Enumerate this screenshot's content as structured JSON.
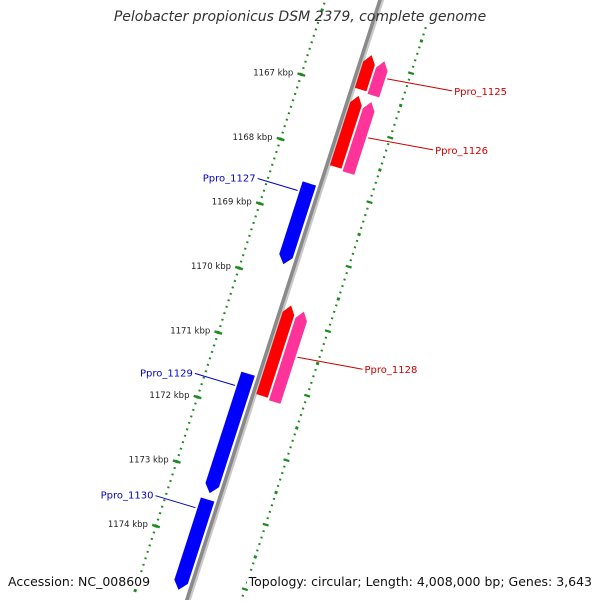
{
  "title": "Pelobacter propionicus DSM 2379, complete genome",
  "accession_text": "Accession: NC_008609",
  "summary_text": "Topology: circular; Length: 4,008,000 bp; Genes: 3,643",
  "colors": {
    "backbone": "#8a8a8a",
    "tick_dots": "#1f8a1f",
    "forward_gene_dark": "#ff0000",
    "forward_gene_light": "#ff3399",
    "reverse_gene": "#0000ff",
    "forward_label": "#cc0000",
    "reverse_label": "#0000cc"
  },
  "scale_marks": [
    {
      "label": "1167 kbp",
      "kbp": 1167
    },
    {
      "label": "1168 kbp",
      "kbp": 1168
    },
    {
      "label": "1169 kbp",
      "kbp": 1169
    },
    {
      "label": "1170 kbp",
      "kbp": 1170
    },
    {
      "label": "1171 kbp",
      "kbp": 1171
    },
    {
      "label": "1172 kbp",
      "kbp": 1172
    },
    {
      "label": "1173 kbp",
      "kbp": 1173
    },
    {
      "label": "1174 kbp",
      "kbp": 1174
    }
  ],
  "genes": [
    {
      "name": "Ppro_1125",
      "strand": "forward",
      "start_kbp": 1166.42,
      "end_kbp": 1166.95
    },
    {
      "name": "Ppro_1126",
      "strand": "forward",
      "start_kbp": 1167.05,
      "end_kbp": 1168.15
    },
    {
      "name": "Ppro_1127",
      "strand": "reverse",
      "start_kbp": 1168.5,
      "end_kbp": 1169.75
    },
    {
      "name": "Ppro_1128",
      "strand": "forward",
      "start_kbp": 1170.3,
      "end_kbp": 1171.7
    },
    {
      "name": "Ppro_1129",
      "strand": "reverse",
      "start_kbp": 1171.45,
      "end_kbp": 1173.3
    },
    {
      "name": "Ppro_1130",
      "strand": "reverse",
      "start_kbp": 1173.4,
      "end_kbp": 1174.8
    }
  ]
}
